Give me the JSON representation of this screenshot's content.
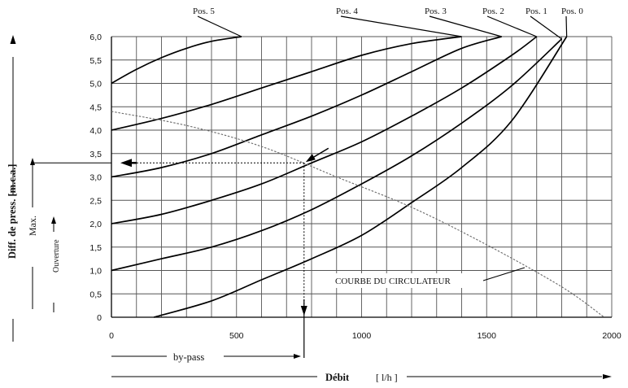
{
  "chart_data": {
    "type": "line",
    "title": "",
    "xlabel": "Débit",
    "xunit": "[ l/h ]",
    "ylabel": "Diff. de press. [m.c.a.]",
    "xlim": [
      0,
      2000
    ],
    "ylim": [
      0,
      6
    ],
    "x_ticks": [
      "0",
      "500",
      "1000",
      "1500",
      "2000"
    ],
    "y_ticks": [
      "0",
      "0,5",
      "1,0",
      "1,5",
      "2,0",
      "2,5",
      "3,0",
      "3,5",
      "4,0",
      "4,5",
      "5,0",
      "5,5",
      "6,0"
    ],
    "grid": true,
    "grid_x_step": 100,
    "grid_y_step": 0.5,
    "series": [
      {
        "name": "Pos. 5",
        "x": [
          0,
          100,
          200,
          300,
          400,
          520
        ],
        "y": [
          5.0,
          5.3,
          5.55,
          5.75,
          5.9,
          6.0
        ]
      },
      {
        "name": "Pos. 4",
        "x": [
          0,
          200,
          400,
          600,
          800,
          1000,
          1200,
          1400
        ],
        "y": [
          4.0,
          4.25,
          4.55,
          4.9,
          5.25,
          5.6,
          5.85,
          6.0
        ]
      },
      {
        "name": "Pos. 3",
        "x": [
          0,
          200,
          400,
          600,
          800,
          1000,
          1200,
          1400,
          1560
        ],
        "y": [
          3.0,
          3.2,
          3.5,
          3.9,
          4.3,
          4.75,
          5.25,
          5.75,
          6.0
        ]
      },
      {
        "name": "Pos. 2",
        "x": [
          0,
          200,
          400,
          600,
          800,
          1000,
          1200,
          1400,
          1600,
          1700
        ],
        "y": [
          2.0,
          2.2,
          2.5,
          2.85,
          3.3,
          3.75,
          4.3,
          4.9,
          5.6,
          6.0
        ]
      },
      {
        "name": "Pos. 1",
        "x": [
          0,
          200,
          400,
          600,
          800,
          1000,
          1200,
          1400,
          1600,
          1800
        ],
        "y": [
          1.0,
          1.25,
          1.5,
          1.85,
          2.3,
          2.85,
          3.45,
          4.15,
          4.95,
          5.95
        ]
      },
      {
        "name": "Pos. 0",
        "x": [
          170,
          400,
          600,
          800,
          1000,
          1200,
          1400,
          1600,
          1820
        ],
        "y": [
          0.0,
          0.35,
          0.8,
          1.25,
          1.75,
          2.45,
          3.2,
          4.2,
          6.0
        ]
      },
      {
        "name": "COURBE DU CIRCULATEUR",
        "x": [
          0,
          300,
          600,
          900,
          1200,
          1500,
          1800,
          1970
        ],
        "y": [
          4.4,
          4.1,
          3.65,
          3.0,
          2.35,
          1.55,
          0.65,
          0.0
        ]
      }
    ],
    "annotations": {
      "operating_point": {
        "x": 770,
        "y": 3.3
      },
      "circulator_label": "COURBE DU CIRCULATEUR",
      "max_label": "Max.",
      "opening_label": "Ouverture",
      "bypass_label": "by-pass"
    }
  }
}
